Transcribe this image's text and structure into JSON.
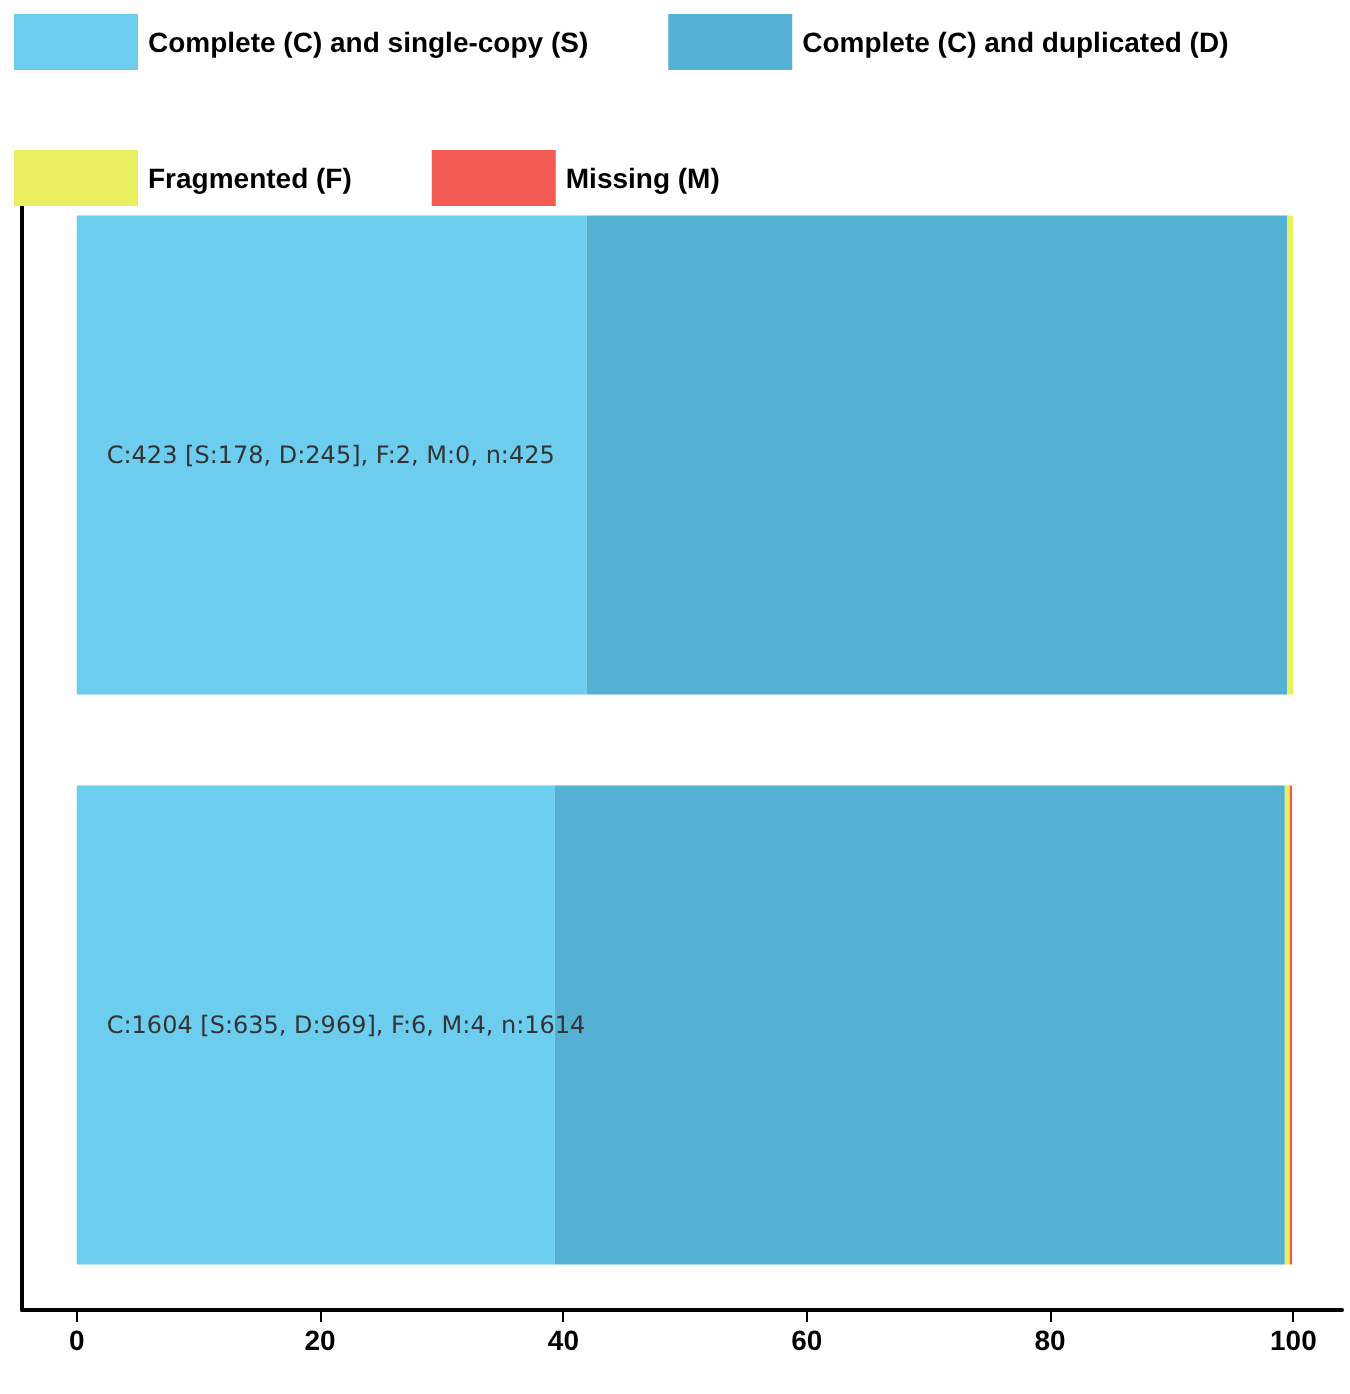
{
  "chart_data": {
    "type": "bar",
    "orientation": "horizontal",
    "stacked": true,
    "categories": [
      null,
      null
    ],
    "series": [
      {
        "name": "Complete (C) and single-copy (S)",
        "color": "#6dcdef",
        "values": [
          41.9,
          39.3
        ]
      },
      {
        "name": "Complete (C) and duplicated (D)",
        "color": "#55b1d4",
        "values": [
          57.6,
          60.0
        ]
      },
      {
        "name": "Fragmented (F)",
        "color": "#e9ef5f",
        "values": [
          0.5,
          0.4
        ]
      },
      {
        "name": "Missing (M)",
        "color": "#f25c54",
        "values": [
          0,
          0.2
        ]
      }
    ],
    "annotations": [
      "C:423 [S:178, D:245], F:2, M:0, n:425",
      "C:1604 [S:635, D:969], F:6, M:4, n:1614"
    ],
    "xlim": [
      -4.5,
      104
    ],
    "xticks": [
      0,
      20,
      40,
      60,
      80,
      100
    ],
    "grid": false,
    "legend": "top"
  }
}
